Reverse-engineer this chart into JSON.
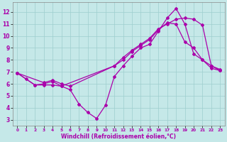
{
  "xlabel": "Windchill (Refroidissement éolien,°C)",
  "bg_color": "#c5e8e8",
  "grid_color": "#9ecece",
  "line_color": "#aa00aa",
  "xlim": [
    -0.5,
    23.5
  ],
  "ylim": [
    2.5,
    12.8
  ],
  "xticks": [
    0,
    1,
    2,
    3,
    4,
    5,
    6,
    7,
    8,
    9,
    10,
    11,
    12,
    13,
    14,
    15,
    16,
    17,
    18,
    19,
    20,
    21,
    22,
    23
  ],
  "yticks": [
    3,
    4,
    5,
    6,
    7,
    8,
    9,
    10,
    11,
    12
  ],
  "line1_x": [
    0,
    1,
    2,
    3,
    4,
    5,
    11,
    12,
    13,
    14,
    15,
    16,
    17,
    18,
    19,
    20,
    21,
    22,
    23
  ],
  "line1_y": [
    6.9,
    6.4,
    5.9,
    5.9,
    5.9,
    5.8,
    7.5,
    8.0,
    8.7,
    9.2,
    9.7,
    10.5,
    11.1,
    11.0,
    9.5,
    9.0,
    8.0,
    7.5,
    7.2
  ],
  "line2_x": [
    0,
    2,
    3,
    4,
    5,
    6,
    7,
    8,
    9,
    10,
    11,
    12,
    13,
    14,
    15,
    16,
    17,
    18,
    19,
    20,
    21,
    22,
    23
  ],
  "line2_y": [
    6.9,
    5.9,
    6.0,
    6.2,
    5.8,
    5.5,
    4.3,
    3.6,
    3.1,
    4.2,
    6.6,
    7.5,
    8.3,
    9.0,
    9.3,
    10.4,
    11.5,
    12.3,
    11.0,
    8.5,
    8.0,
    7.3,
    7.1
  ],
  "line3_x": [
    0,
    3,
    4,
    5,
    6,
    11,
    12,
    13,
    14,
    15,
    16,
    17,
    18,
    19,
    20,
    21,
    22,
    23
  ],
  "line3_y": [
    6.9,
    6.1,
    6.3,
    6.0,
    5.8,
    7.5,
    8.2,
    8.8,
    9.3,
    9.8,
    10.6,
    11.0,
    11.4,
    11.5,
    11.4,
    10.9,
    7.5,
    7.1
  ]
}
